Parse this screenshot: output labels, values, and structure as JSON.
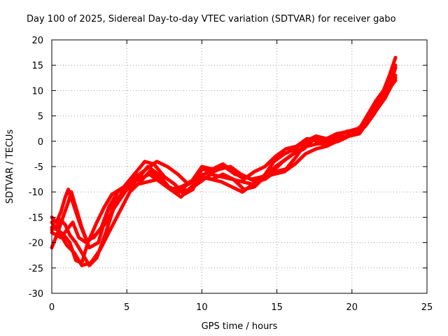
{
  "chart_data": {
    "type": "scatter",
    "title": "Day 100 of 2025, Sidereal Day-to-day VTEC variation (SDTVAR) for receiver gabo",
    "xlabel": "GPS time / hours",
    "ylabel": "SDTVAR / TECUs",
    "xlim": [
      0,
      25
    ],
    "ylim": [
      -30,
      20
    ],
    "xticks": [
      "0",
      "5",
      "10",
      "15",
      "20",
      "25"
    ],
    "yticks": [
      "20",
      "15",
      "10",
      "5",
      "0",
      "-5",
      "-10",
      "-15",
      "-20",
      "-25",
      "-30"
    ],
    "grid": true,
    "marker_color": "#ff0000",
    "series": [
      {
        "x": [
          0.0,
          0.4,
          0.8,
          1.2,
          1.6,
          2.0,
          2.4,
          3.0,
          3.5,
          4.0,
          4.8,
          5.5,
          6.2,
          6.8,
          7.5,
          8.2,
          8.8,
          9.4,
          10.0,
          10.8,
          11.5,
          12.2,
          12.9,
          13.6,
          14.2,
          14.9,
          15.6,
          16.3,
          17.0,
          17.6,
          18.3,
          19.0,
          19.7,
          20.4,
          21.0,
          21.6,
          22.1,
          22.5,
          22.9
        ],
        "y": [
          -17.0,
          -17.5,
          -18.5,
          -20.0,
          -23.5,
          -24.0,
          -20.0,
          -16.0,
          -13.0,
          -10.5,
          -9.0,
          -6.5,
          -4.0,
          -4.5,
          -7.0,
          -8.5,
          -10.5,
          -9.5,
          -5.5,
          -6.0,
          -5.0,
          -6.5,
          -7.0,
          -8.0,
          -7.5,
          -6.0,
          -5.5,
          -3.0,
          0.0,
          1.0,
          0.5,
          1.5,
          1.8,
          2.0,
          5.0,
          8.0,
          10.0,
          13.0,
          16.5
        ]
      },
      {
        "x": [
          0.0,
          0.5,
          1.0,
          1.5,
          2.0,
          2.6,
          3.2,
          3.8,
          4.5,
          5.2,
          5.9,
          6.5,
          7.2,
          7.9,
          8.6,
          9.3,
          10.0,
          10.7,
          11.4,
          12.1,
          12.8,
          13.5,
          14.2,
          14.9,
          15.6,
          16.3,
          17.0,
          17.7,
          18.4,
          19.1,
          19.8,
          20.5,
          21.1,
          21.7,
          22.2,
          22.6,
          22.9
        ],
        "y": [
          -16.0,
          -18.0,
          -20.5,
          -22.0,
          -24.5,
          -24.0,
          -21.5,
          -18.0,
          -14.0,
          -10.0,
          -8.0,
          -6.0,
          -7.5,
          -9.5,
          -11.0,
          -9.0,
          -7.0,
          -7.5,
          -6.5,
          -7.5,
          -9.5,
          -9.0,
          -7.0,
          -5.0,
          -3.5,
          -2.0,
          -1.0,
          -0.5,
          -0.5,
          0.0,
          1.0,
          1.5,
          4.0,
          6.5,
          9.0,
          11.5,
          14.5
        ]
      },
      {
        "x": [
          0.0,
          0.3,
          0.6,
          1.0,
          1.4,
          1.8,
          2.3,
          2.9,
          3.5,
          4.2,
          5.0,
          5.7,
          6.4,
          7.1,
          7.8,
          8.5,
          9.2,
          9.9,
          10.6,
          11.3,
          12.0,
          12.7,
          13.4,
          14.1,
          14.8,
          15.5,
          16.2,
          16.9,
          17.6,
          18.3,
          19.0,
          19.7,
          20.4,
          21.0,
          21.6,
          22.2,
          22.9
        ],
        "y": [
          -18.0,
          -18.5,
          -19.0,
          -17.5,
          -16.0,
          -19.0,
          -20.0,
          -18.5,
          -16.5,
          -13.0,
          -9.5,
          -7.5,
          -5.0,
          -6.5,
          -9.0,
          -10.0,
          -9.5,
          -8.0,
          -6.5,
          -7.0,
          -7.5,
          -8.0,
          -8.5,
          -7.0,
          -6.5,
          -6.0,
          -4.5,
          -2.5,
          -1.5,
          -1.0,
          0.0,
          1.0,
          1.5,
          3.5,
          6.0,
          8.5,
          12.5
        ]
      },
      {
        "x": [
          0.0,
          0.3,
          0.6,
          0.9,
          1.1,
          1.5,
          1.9,
          2.3,
          2.8,
          3.3,
          3.8,
          4.4,
          5.1,
          5.8,
          6.5,
          7.2,
          7.9,
          8.6,
          9.3,
          10.0,
          10.7,
          11.4,
          12.1,
          12.8,
          13.5,
          14.2,
          14.9,
          15.6,
          16.3,
          17.0,
          17.7,
          18.4,
          19.1,
          19.8,
          20.4,
          21.0,
          21.5,
          22.0,
          22.4,
          22.9
        ],
        "y": [
          -15.0,
          -16.0,
          -14.0,
          -11.0,
          -9.5,
          -13.0,
          -16.5,
          -19.5,
          -19.0,
          -17.0,
          -13.0,
          -10.0,
          -8.5,
          -7.5,
          -6.5,
          -8.0,
          -9.5,
          -9.0,
          -8.0,
          -5.0,
          -5.5,
          -4.5,
          -6.0,
          -7.5,
          -6.0,
          -5.0,
          -3.0,
          -1.5,
          -1.0,
          0.5,
          0.0,
          0.5,
          1.5,
          2.0,
          2.5,
          4.0,
          6.5,
          9.0,
          11.0,
          13.0
        ]
      },
      {
        "x": [
          0.0,
          0.4,
          0.8,
          1.1,
          1.3,
          1.6,
          2.0,
          2.5,
          3.1,
          3.7,
          4.3,
          5.0,
          5.7,
          6.4,
          7.1,
          7.8,
          8.5,
          9.2,
          9.9,
          10.6,
          11.3,
          12.0,
          12.7,
          13.4,
          14.1,
          14.8,
          15.5,
          16.2,
          16.9,
          17.6,
          18.3,
          19.0,
          19.7,
          20.3,
          20.9,
          21.5,
          22.0,
          22.5,
          22.9
        ],
        "y": [
          -21.0,
          -18.0,
          -14.5,
          -12.0,
          -10.0,
          -13.0,
          -17.0,
          -21.0,
          -20.0,
          -14.0,
          -11.5,
          -9.5,
          -8.5,
          -8.0,
          -7.5,
          -9.0,
          -10.0,
          -8.0,
          -7.0,
          -7.5,
          -8.0,
          -9.0,
          -10.0,
          -8.5,
          -7.0,
          -4.0,
          -2.5,
          -1.5,
          0.0,
          1.0,
          0.5,
          1.0,
          2.0,
          1.5,
          3.0,
          5.5,
          8.0,
          10.5,
          12.0
        ]
      },
      {
        "x": [
          0.0,
          0.3,
          0.6,
          0.9,
          1.2,
          1.6,
          2.0,
          2.5,
          3.0,
          3.6,
          4.2,
          4.9,
          5.6,
          6.3,
          7.0,
          7.7,
          8.4,
          9.1,
          9.8,
          10.5,
          11.2,
          11.9,
          12.6,
          13.3,
          14.0,
          14.7,
          15.4,
          16.1,
          16.8,
          17.5,
          18.2,
          18.9,
          19.6,
          20.3,
          20.9,
          21.5,
          22.0,
          22.5,
          22.9
        ],
        "y": [
          -17.5,
          -17.0,
          -15.5,
          -16.5,
          -18.5,
          -20.0,
          -22.0,
          -24.5,
          -23.0,
          -18.0,
          -12.5,
          -9.0,
          -7.0,
          -5.5,
          -4.0,
          -5.0,
          -6.5,
          -8.5,
          -7.0,
          -6.0,
          -5.5,
          -5.0,
          -6.5,
          -7.5,
          -7.0,
          -6.0,
          -4.0,
          -2.5,
          -1.5,
          0.5,
          0.0,
          0.5,
          1.0,
          2.0,
          3.5,
          6.5,
          9.5,
          12.0,
          15.0
        ]
      }
    ]
  }
}
